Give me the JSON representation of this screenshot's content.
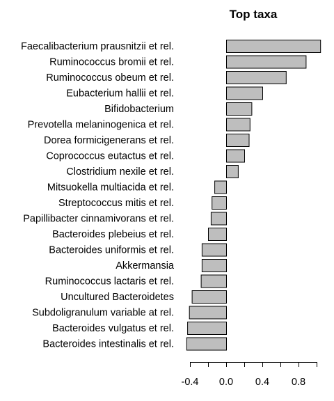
{
  "chart_data": {
    "type": "bar",
    "orientation": "horizontal",
    "title": "Top taxa",
    "xlabel": "",
    "ylabel": "",
    "xlim": [
      -0.42,
      1.0
    ],
    "xticks": [
      -0.4,
      -0.2,
      0.0,
      0.2,
      0.4,
      0.6,
      0.8,
      1.0
    ],
    "xtick_labels": [
      "-0.4",
      "",
      "0.0",
      "",
      "0.4",
      "",
      "0.8",
      ""
    ],
    "bar_color": "#bebebe",
    "categories": [
      "Faecalibacterium prausnitzii et rel.",
      "Ruminococcus bromii et rel.",
      "Ruminococcus obeum et rel.",
      "Eubacterium hallii et rel.",
      "Bifidobacterium",
      "Prevotella melaninogenica et rel.",
      "Dorea formicigenerans et rel.",
      "Coprococcus eutactus et rel.",
      "Clostridium nexile et rel.",
      "Mitsuokella multiacida et rel.",
      "Streptococcus mitis et rel.",
      "Papillibacter cinnamivorans et rel.",
      "Bacteroides plebeius et rel.",
      "Bacteroides uniformis et rel.",
      "Akkermansia",
      "Ruminococcus lactaris et rel.",
      "Uncultured Bacteroidetes",
      "Subdoligranulum variable at rel.",
      "Bacteroides vulgatus et rel.",
      "Bacteroides intestinalis et rel."
    ],
    "values": [
      1.04,
      0.88,
      0.66,
      0.4,
      0.28,
      0.26,
      0.25,
      0.2,
      0.13,
      -0.13,
      -0.16,
      -0.17,
      -0.2,
      -0.27,
      -0.27,
      -0.28,
      -0.38,
      -0.41,
      -0.43,
      -0.44
    ]
  }
}
